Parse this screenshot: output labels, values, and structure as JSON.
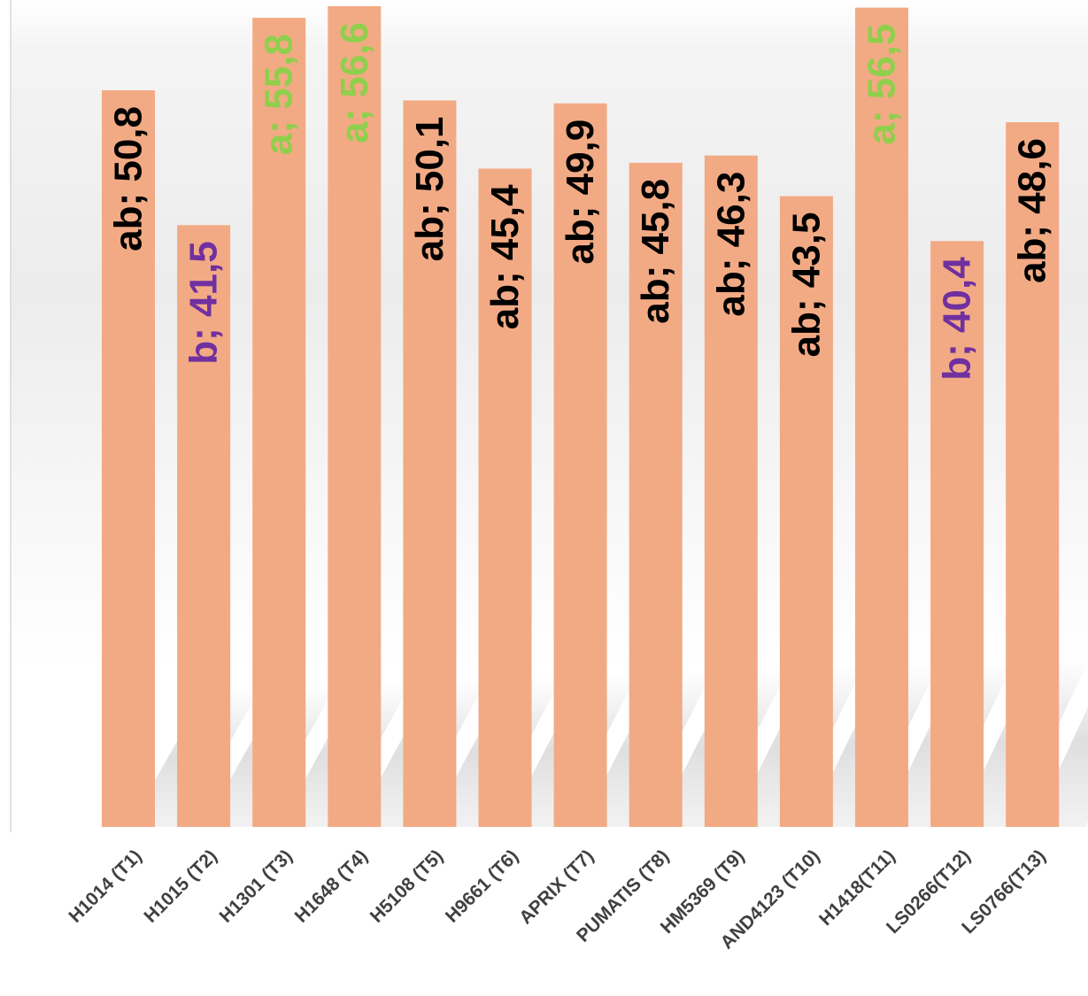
{
  "chart_data": {
    "type": "bar",
    "title": "",
    "xlabel": "",
    "ylabel": "",
    "ylim": [
      0,
      56.6
    ],
    "grid": false,
    "legend": "none",
    "categories": [
      "H1014 (T1)",
      "H1015 (T2)",
      "H1301 (T3)",
      "H1648 (T4)",
      "H5108 (T5)",
      "H9661 (T6)",
      "APRIX (T7)",
      "PUMATIS (T8)",
      "HM5369 (T9)",
      "AND4123 (T10)",
      "H1418(T11)",
      "LS0266(T12)",
      "LS0766(T13)"
    ],
    "values": [
      50.8,
      41.5,
      55.8,
      56.6,
      50.1,
      45.4,
      49.9,
      45.8,
      46.3,
      43.5,
      56.5,
      40.4,
      48.6
    ],
    "data_labels": [
      "ab; 50,8",
      "b; 41,5",
      "a; 55,8",
      "a; 56,6",
      "ab; 50,1",
      "ab; 45,4",
      "ab; 49,9",
      "ab; 45,8",
      "ab; 46,3",
      "ab; 43,5",
      "a; 56,5",
      "b; 40,4",
      "ab; 48,6"
    ],
    "groups": [
      "ab",
      "b",
      "a",
      "a",
      "ab",
      "ab",
      "ab",
      "ab",
      "ab",
      "ab",
      "a",
      "b",
      "ab"
    ]
  },
  "colors": {
    "bar": "#f2aa84",
    "group_a": "#8fcf4c",
    "group_b": "#7030a0",
    "group_ab": "#000000",
    "category_label": "#404040",
    "background_top": "#f2f2f2",
    "background_bottom": "#ffffff"
  }
}
